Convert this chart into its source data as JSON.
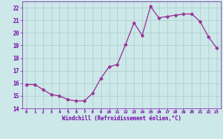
{
  "x": [
    0,
    1,
    2,
    3,
    4,
    5,
    6,
    7,
    8,
    9,
    10,
    11,
    12,
    13,
    14,
    15,
    16,
    17,
    18,
    19,
    20,
    21,
    22,
    23
  ],
  "y": [
    15.9,
    15.9,
    15.5,
    15.1,
    15.0,
    14.7,
    14.6,
    14.6,
    15.2,
    16.4,
    17.3,
    17.5,
    19.1,
    20.8,
    19.8,
    22.1,
    21.2,
    21.3,
    21.4,
    21.5,
    21.5,
    20.9,
    19.7,
    18.8
  ],
  "xlabel": "Windchill (Refroidissement éolien,°C)",
  "xlim_min": -0.5,
  "xlim_max": 23.5,
  "ylim_min": 14,
  "ylim_max": 22.5,
  "yticks": [
    14,
    15,
    16,
    17,
    18,
    19,
    20,
    21,
    22
  ],
  "xticks": [
    0,
    1,
    2,
    3,
    4,
    5,
    6,
    7,
    8,
    9,
    10,
    11,
    12,
    13,
    14,
    15,
    16,
    17,
    18,
    19,
    20,
    21,
    22,
    23
  ],
  "line_color": "#993399",
  "marker": "D",
  "marker_size": 2.5,
  "bg_color": "#cce8e8",
  "grid_color": "#b0cece",
  "label_color": "#7700aa",
  "tick_color": "#7700aa",
  "font_family": "monospace",
  "linewidth": 1.0
}
